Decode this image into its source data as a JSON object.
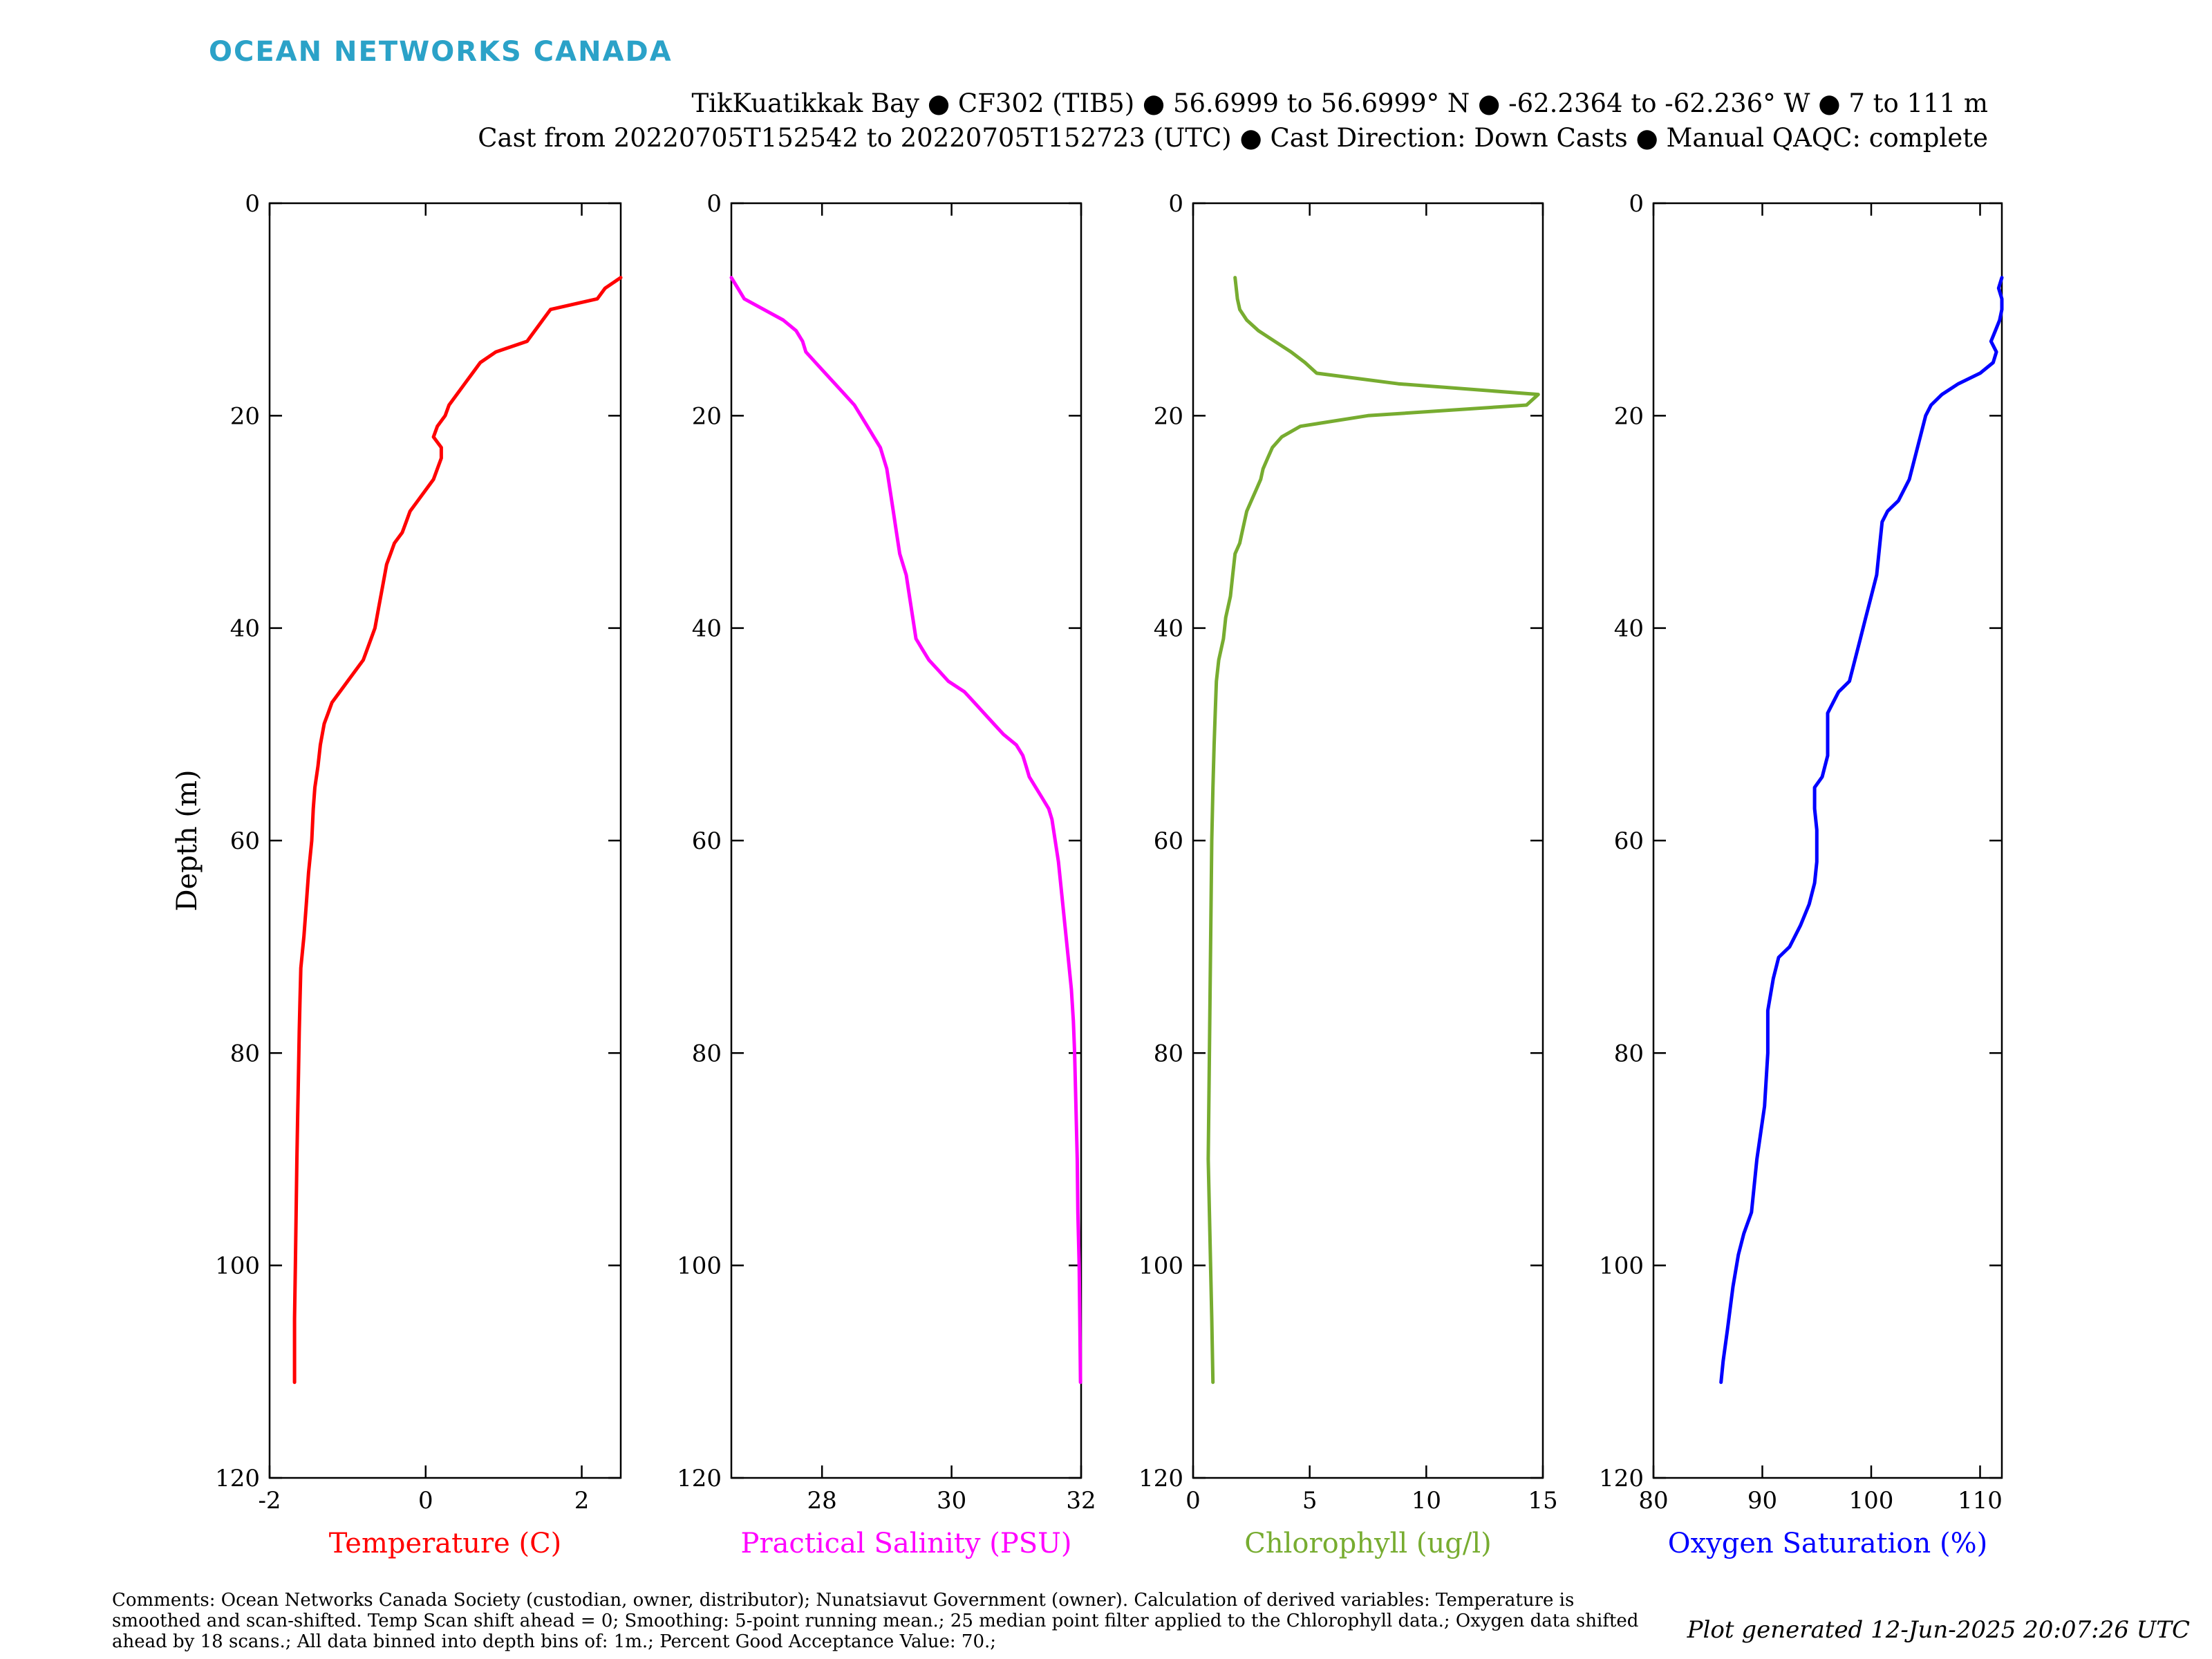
{
  "header": {
    "logo_text": "OCEAN NETWORKS CANADA",
    "title_line1": "TikKuatikkak Bay ● CF302 (TIB5) ● 56.6999 to 56.6999° N ● -62.2364 to -62.236° W ● 7 to 111 m",
    "title_line2": "Cast from 20220705T152542 to 20220705T152723 (UTC) ● Cast Direction: Down Casts ● Manual QAQC: complete"
  },
  "footer": {
    "comments": "Comments: Ocean Networks Canada Society (custodian, owner, distributor); Nunatsiavut Government (owner). Calculation of derived variables: Temperature is smoothed and scan-shifted. Temp Scan shift ahead = 0; Smoothing: 5-point running mean.; 25 median point filter applied to the Chlorophyll data.; Oxygen data shifted ahead by 18 scans.; All data binned into depth bins of: 1m.; Percent Good Acceptance Value: 70.;",
    "generated": "Plot generated 12-Jun-2025 20:07:26 UTC"
  },
  "colors": {
    "logo": "#2ba2c8",
    "temperature": "#ff0000",
    "salinity": "#ff00ff",
    "chlorophyll": "#77ac30",
    "oxygen": "#0000ff"
  },
  "chart_data": [
    {
      "type": "line",
      "xlabel": "Temperature (C)",
      "ylabel": "Depth (m)",
      "color": "#ff0000",
      "xlim": [
        -2,
        2.5
      ],
      "ylim": [
        0,
        120
      ],
      "y_reversed": true,
      "xticks": [
        -2,
        0,
        2
      ],
      "yticks": [
        0,
        20,
        40,
        60,
        80,
        100,
        120
      ],
      "points": [
        [
          2.5,
          7
        ],
        [
          2.3,
          8
        ],
        [
          2.2,
          9
        ],
        [
          1.6,
          10
        ],
        [
          1.5,
          11
        ],
        [
          1.4,
          12
        ],
        [
          1.3,
          13
        ],
        [
          0.9,
          14
        ],
        [
          0.7,
          15
        ],
        [
          0.6,
          16
        ],
        [
          0.5,
          17
        ],
        [
          0.4,
          18
        ],
        [
          0.3,
          19
        ],
        [
          0.25,
          20
        ],
        [
          0.15,
          21
        ],
        [
          0.1,
          22
        ],
        [
          0.2,
          23
        ],
        [
          0.2,
          24
        ],
        [
          0.15,
          25
        ],
        [
          0.1,
          26
        ],
        [
          0.0,
          27
        ],
        [
          -0.1,
          28
        ],
        [
          -0.2,
          29
        ],
        [
          -0.25,
          30
        ],
        [
          -0.3,
          31
        ],
        [
          -0.4,
          32
        ],
        [
          -0.45,
          33
        ],
        [
          -0.5,
          34
        ],
        [
          -0.55,
          36
        ],
        [
          -0.6,
          38
        ],
        [
          -0.65,
          40
        ],
        [
          -0.7,
          41
        ],
        [
          -0.8,
          43
        ],
        [
          -0.9,
          44
        ],
        [
          -1.0,
          45
        ],
        [
          -1.1,
          46
        ],
        [
          -1.2,
          47
        ],
        [
          -1.25,
          48
        ],
        [
          -1.3,
          49
        ],
        [
          -1.35,
          51
        ],
        [
          -1.38,
          53
        ],
        [
          -1.42,
          55
        ],
        [
          -1.44,
          57
        ],
        [
          -1.46,
          60
        ],
        [
          -1.5,
          63
        ],
        [
          -1.53,
          66
        ],
        [
          -1.56,
          69
        ],
        [
          -1.6,
          72
        ],
        [
          -1.61,
          75
        ],
        [
          -1.62,
          78
        ],
        [
          -1.63,
          82
        ],
        [
          -1.64,
          86
        ],
        [
          -1.65,
          90
        ],
        [
          -1.66,
          95
        ],
        [
          -1.67,
          100
        ],
        [
          -1.68,
          105
        ],
        [
          -1.68,
          111
        ]
      ]
    },
    {
      "type": "line",
      "xlabel": "Practical Salinity (PSU)",
      "color": "#ff00ff",
      "xlim": [
        26.6,
        32
      ],
      "ylim": [
        0,
        120
      ],
      "y_reversed": true,
      "xticks": [
        28,
        30,
        32
      ],
      "yticks": [
        0,
        20,
        40,
        60,
        80,
        100,
        120
      ],
      "points": [
        [
          26.6,
          7
        ],
        [
          26.7,
          8
        ],
        [
          26.8,
          9
        ],
        [
          27.1,
          10
        ],
        [
          27.4,
          11
        ],
        [
          27.6,
          12
        ],
        [
          27.7,
          13
        ],
        [
          27.75,
          14
        ],
        [
          27.9,
          15
        ],
        [
          28.05,
          16
        ],
        [
          28.2,
          17
        ],
        [
          28.35,
          18
        ],
        [
          28.5,
          19
        ],
        [
          28.6,
          20
        ],
        [
          28.7,
          21
        ],
        [
          28.8,
          22
        ],
        [
          28.9,
          23
        ],
        [
          28.95,
          24
        ],
        [
          29.0,
          25
        ],
        [
          29.05,
          27
        ],
        [
          29.1,
          29
        ],
        [
          29.15,
          31
        ],
        [
          29.2,
          33
        ],
        [
          29.3,
          35
        ],
        [
          29.35,
          37
        ],
        [
          29.4,
          39
        ],
        [
          29.45,
          41
        ],
        [
          29.55,
          42
        ],
        [
          29.65,
          43
        ],
        [
          29.8,
          44
        ],
        [
          29.95,
          45
        ],
        [
          30.2,
          46
        ],
        [
          30.35,
          47
        ],
        [
          30.5,
          48
        ],
        [
          30.65,
          49
        ],
        [
          30.8,
          50
        ],
        [
          31.0,
          51
        ],
        [
          31.1,
          52
        ],
        [
          31.15,
          53
        ],
        [
          31.2,
          54
        ],
        [
          31.3,
          55
        ],
        [
          31.4,
          56
        ],
        [
          31.5,
          57
        ],
        [
          31.55,
          58
        ],
        [
          31.6,
          60
        ],
        [
          31.65,
          62
        ],
        [
          31.7,
          65
        ],
        [
          31.75,
          68
        ],
        [
          31.8,
          71
        ],
        [
          31.85,
          74
        ],
        [
          31.88,
          77
        ],
        [
          31.9,
          80
        ],
        [
          31.92,
          85
        ],
        [
          31.94,
          90
        ],
        [
          31.95,
          95
        ],
        [
          31.97,
          100
        ],
        [
          31.98,
          105
        ],
        [
          31.99,
          111
        ]
      ]
    },
    {
      "type": "line",
      "xlabel": "Chlorophyll (ug/l)",
      "color": "#77ac30",
      "xlim": [
        0,
        15
      ],
      "ylim": [
        0,
        120
      ],
      "y_reversed": true,
      "xticks": [
        0,
        5,
        10,
        15
      ],
      "yticks": [
        0,
        20,
        40,
        60,
        80,
        100,
        120
      ],
      "points": [
        [
          1.8,
          7
        ],
        [
          1.85,
          8
        ],
        [
          1.9,
          9
        ],
        [
          2.0,
          10
        ],
        [
          2.3,
          11
        ],
        [
          2.8,
          12
        ],
        [
          3.5,
          13
        ],
        [
          4.2,
          14
        ],
        [
          4.8,
          15
        ],
        [
          5.3,
          16
        ],
        [
          8.8,
          17
        ],
        [
          14.8,
          18
        ],
        [
          14.3,
          19
        ],
        [
          7.5,
          20
        ],
        [
          4.6,
          21
        ],
        [
          3.8,
          22
        ],
        [
          3.4,
          23
        ],
        [
          3.2,
          24
        ],
        [
          3.0,
          25
        ],
        [
          2.9,
          26
        ],
        [
          2.7,
          27
        ],
        [
          2.5,
          28
        ],
        [
          2.3,
          29
        ],
        [
          2.2,
          30
        ],
        [
          2.1,
          31
        ],
        [
          2.0,
          32
        ],
        [
          1.8,
          33
        ],
        [
          1.7,
          35
        ],
        [
          1.6,
          37
        ],
        [
          1.4,
          39
        ],
        [
          1.3,
          41
        ],
        [
          1.1,
          43
        ],
        [
          1.0,
          45
        ],
        [
          0.95,
          48
        ],
        [
          0.9,
          51
        ],
        [
          0.85,
          55
        ],
        [
          0.8,
          60
        ],
        [
          0.75,
          70
        ],
        [
          0.7,
          80
        ],
        [
          0.65,
          90
        ],
        [
          0.7,
          95
        ],
        [
          0.75,
          100
        ],
        [
          0.8,
          105
        ],
        [
          0.85,
          111
        ]
      ]
    },
    {
      "type": "line",
      "xlabel": "Oxygen Saturation (%)",
      "color": "#0000ff",
      "xlim": [
        80,
        112
      ],
      "ylim": [
        0,
        120
      ],
      "y_reversed": true,
      "xticks": [
        80,
        90,
        100,
        110
      ],
      "yticks": [
        0,
        20,
        40,
        60,
        80,
        100,
        120
      ],
      "points": [
        [
          112,
          7
        ],
        [
          111.7,
          8
        ],
        [
          112,
          9
        ],
        [
          112,
          10
        ],
        [
          111.8,
          11
        ],
        [
          111.4,
          12
        ],
        [
          111,
          13
        ],
        [
          111.5,
          14
        ],
        [
          111.2,
          15
        ],
        [
          110,
          16
        ],
        [
          108,
          17
        ],
        [
          106.5,
          18
        ],
        [
          105.5,
          19
        ],
        [
          105,
          20
        ],
        [
          104.5,
          22
        ],
        [
          104,
          24
        ],
        [
          103.5,
          26
        ],
        [
          102.5,
          28
        ],
        [
          101.5,
          29
        ],
        [
          101,
          30
        ],
        [
          100.8,
          32
        ],
        [
          100.5,
          35
        ],
        [
          100,
          37
        ],
        [
          99.5,
          39
        ],
        [
          99,
          41
        ],
        [
          98.5,
          43
        ],
        [
          98,
          45
        ],
        [
          97,
          46
        ],
        [
          96.5,
          47
        ],
        [
          96,
          48
        ],
        [
          96,
          50
        ],
        [
          96,
          52
        ],
        [
          95.5,
          54
        ],
        [
          94.8,
          55
        ],
        [
          94.8,
          57
        ],
        [
          95,
          59
        ],
        [
          95,
          62
        ],
        [
          94.8,
          64
        ],
        [
          94.3,
          66
        ],
        [
          93.5,
          68
        ],
        [
          92.5,
          70
        ],
        [
          91.5,
          71
        ],
        [
          91,
          73
        ],
        [
          90.5,
          76
        ],
        [
          90.5,
          80
        ],
        [
          90.2,
          85
        ],
        [
          89.5,
          90
        ],
        [
          89,
          95
        ],
        [
          88.3,
          97
        ],
        [
          87.8,
          99
        ],
        [
          87.3,
          102
        ],
        [
          86.8,
          106
        ],
        [
          86.4,
          109
        ],
        [
          86.2,
          111
        ]
      ]
    }
  ]
}
